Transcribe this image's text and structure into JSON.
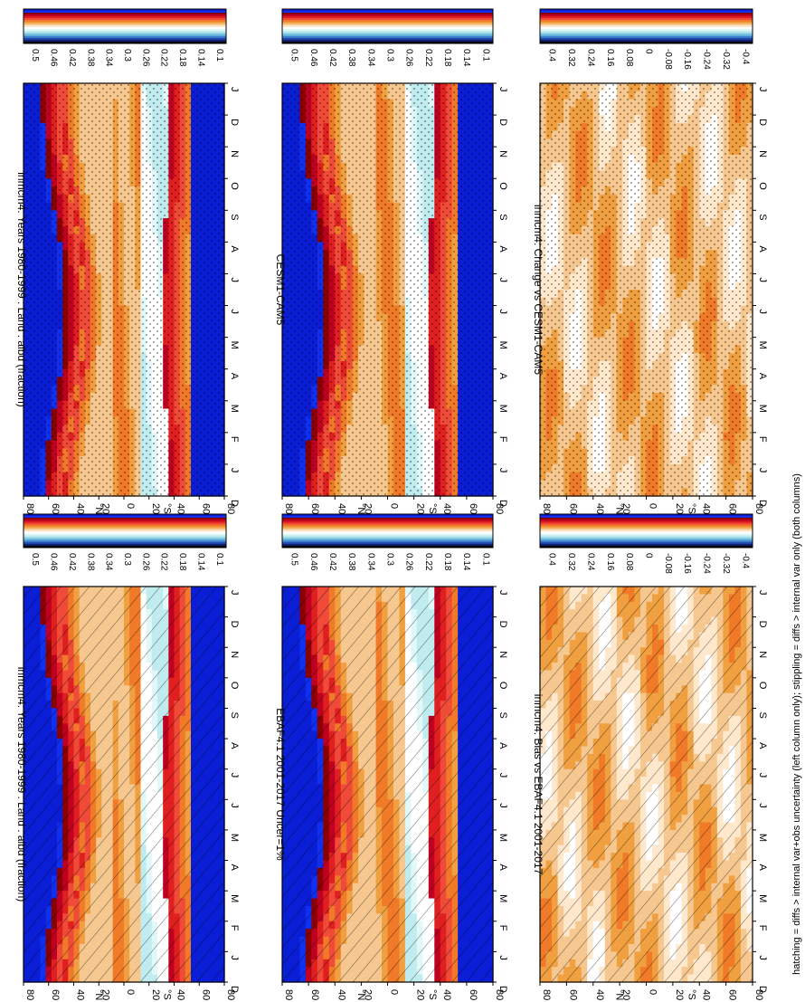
{
  "figure": {
    "footnote": "hatching = diffs > internal var+obs uncertainty (left column only); stippling = diffs > internal var only (both columns)"
  },
  "scales": {
    "abs": {
      "labels": [
        "0.5",
        "0.46",
        "0.42",
        "0.38",
        "0.34",
        "0.3",
        "0.26",
        "0.22",
        "0.18",
        "0.14",
        "0.1"
      ],
      "colors": [
        "#0a1ed6",
        "#1030f0",
        "#8b0000",
        "#c00020",
        "#e02020",
        "#f04a38",
        "#f07a28",
        "#f0a040",
        "#f6c890",
        "#ffe8cc",
        "#ffffff",
        "#e0f8f8",
        "#c0ecf0",
        "#8ed4e6",
        "#64b0dc",
        "#3c7ccc",
        "#1c48a8",
        "#141c70",
        "#000000"
      ]
    },
    "diff": {
      "labels": [
        "0.4",
        "0.32",
        "0.24",
        "0.16",
        "0.08",
        "0",
        "-0.08",
        "-0.16",
        "-0.24",
        "-0.32",
        "-0.4"
      ],
      "colors": [
        "#0a1ed6",
        "#1030f0",
        "#8b0000",
        "#c00020",
        "#e02020",
        "#f04a38",
        "#f07a28",
        "#f0a040",
        "#f6c890",
        "#ffe8cc",
        "#ffffff",
        "#e0f8f8",
        "#c0ecf0",
        "#8ed4e6",
        "#64b0dc",
        "#3c7ccc",
        "#1c48a8",
        "#141c70",
        "#000000"
      ]
    }
  },
  "axes": {
    "lat_ticks": [
      "80",
      "60",
      "40",
      "20",
      "0",
      "20",
      "40",
      "60",
      "80"
    ],
    "hemisphere_labels": [
      "°N",
      "°S"
    ],
    "month_ticks": [
      "D",
      "J",
      "F",
      "M",
      "A",
      "M",
      "J",
      "J",
      "A",
      "S",
      "O",
      "N",
      "D",
      "J"
    ]
  },
  "chart_data": [
    {
      "type": "heatmap",
      "panel": "left-top",
      "title": "inmcm4: Years 1980-1999 : Land : albd (fraction)",
      "scale": "abs",
      "overlay": "hatching",
      "x_axis": "month",
      "y_axis": "latitude",
      "ylim": [
        -90,
        90
      ]
    },
    {
      "type": "heatmap",
      "panel": "right-top",
      "title": "inmcm4: Years 1980-1999 : Land : albd (fraction)",
      "scale": "abs",
      "overlay": "stippling",
      "x_axis": "month",
      "y_axis": "latitude",
      "ylim": [
        -90,
        90
      ]
    },
    {
      "type": "heatmap",
      "panel": "left-middle",
      "title": "EBAF4.1 2001-2017 Uncer=1%",
      "scale": "abs",
      "overlay": "hatching",
      "x_axis": "month",
      "y_axis": "latitude",
      "ylim": [
        -90,
        90
      ]
    },
    {
      "type": "heatmap",
      "panel": "right-middle",
      "title": "CESM1-CAM5",
      "scale": "abs",
      "overlay": "stippling",
      "x_axis": "month",
      "y_axis": "latitude",
      "ylim": [
        -90,
        90
      ]
    },
    {
      "type": "heatmap",
      "panel": "left-bottom",
      "title": "inmcm4: Bias vs EBAF4.1 2001-2017",
      "scale": "diff",
      "overlay": "hatching",
      "x_axis": "month",
      "y_axis": "latitude",
      "ylim": [
        -90,
        90
      ]
    },
    {
      "type": "heatmap",
      "panel": "right-bottom",
      "title": "inmcm4: Change vs CESM1-CAM5",
      "scale": "diff",
      "overlay": "stippling",
      "x_axis": "month",
      "y_axis": "latitude",
      "ylim": [
        -90,
        90
      ]
    }
  ]
}
